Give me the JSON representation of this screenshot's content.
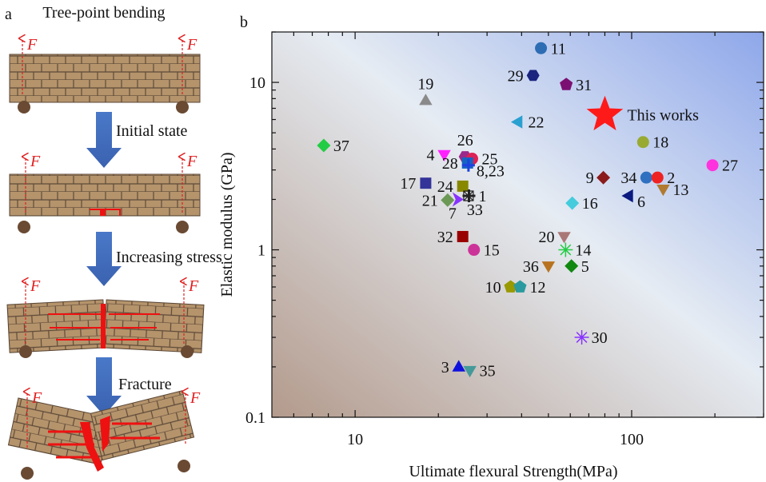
{
  "panel_a": {
    "panel_label": "a",
    "title": "Tree-point bending",
    "force_label": "F",
    "steps": [
      "Initial state",
      "Increasing stress",
      "Fracture"
    ]
  },
  "chart_data": {
    "type": "scatter",
    "panel_label": "b",
    "x_label": "Ultimate flexural Strength(MPa)",
    "y_label": "Elastic modulus (GPa)",
    "x_log": true,
    "y_log": true,
    "xlim": [
      5,
      300
    ],
    "ylim": [
      0.1,
      20
    ],
    "xticks": [
      10,
      100
    ],
    "yticks": [
      0.1,
      1,
      10
    ],
    "xminorticks": [
      6,
      7,
      8,
      9,
      20,
      30,
      40,
      50,
      60,
      70,
      80,
      90,
      200,
      300
    ],
    "yminorticks": [
      0.2,
      0.3,
      0.4,
      0.5,
      0.6,
      0.7,
      0.8,
      0.9,
      2,
      3,
      4,
      5,
      6,
      7,
      8,
      9,
      20
    ],
    "points": [
      {
        "label": "11",
        "x": 47,
        "y": 16,
        "color": "#2e6db4",
        "marker": "circle"
      },
      {
        "label": "29",
        "x": 44,
        "y": 11,
        "color": "#1a237e",
        "marker": "hexagon"
      },
      {
        "label": "31",
        "x": 58,
        "y": 9.7,
        "color": "#7b1072",
        "marker": "pentagon"
      },
      {
        "label": "19",
        "x": 18,
        "y": 7.8,
        "color": "#8a8a8a",
        "marker": "triangle-up"
      },
      {
        "label": "This works",
        "x": 80,
        "y": 6.4,
        "color": "#ff1a1a",
        "marker": "star"
      },
      {
        "label": "22",
        "x": 39,
        "y": 5.8,
        "color": "#2aa0d0",
        "marker": "triangle-left"
      },
      {
        "label": "37",
        "x": 7.7,
        "y": 4.2,
        "color": "#22cc44",
        "marker": "diamond"
      },
      {
        "label": "18",
        "x": 110,
        "y": 4.4,
        "color": "#99aa33",
        "marker": "circle"
      },
      {
        "label": "4",
        "x": 21,
        "y": 3.7,
        "color": "#ff22ff",
        "marker": "triangle-down"
      },
      {
        "label": "26",
        "x": 25,
        "y": 3.6,
        "color": "#9a2a8a",
        "marker": "hexagon"
      },
      {
        "label": "25",
        "x": 26.5,
        "y": 3.5,
        "color": "#dd2255",
        "marker": "circle"
      },
      {
        "label": "28",
        "x": 25.5,
        "y": 3.3,
        "color": "#1565c0",
        "marker": "square"
      },
      {
        "label": "8,23",
        "x": 25.7,
        "y": 3.2,
        "color": "#2040e0",
        "marker": "plus"
      },
      {
        "label": "27",
        "x": 196,
        "y": 3.2,
        "color": "#ff33dd",
        "marker": "circle"
      },
      {
        "label": "9",
        "x": 79,
        "y": 2.7,
        "color": "#8b1a1a",
        "marker": "diamond"
      },
      {
        "label": "34",
        "x": 113,
        "y": 2.7,
        "color": "#3070c0",
        "marker": "circle"
      },
      {
        "label": "2",
        "x": 124,
        "y": 2.7,
        "color": "#ee2222",
        "marker": "circle"
      },
      {
        "label": "13",
        "x": 130,
        "y": 2.3,
        "color": "#b07a30",
        "marker": "triangle-down"
      },
      {
        "label": "17",
        "x": 18,
        "y": 2.5,
        "color": "#333399",
        "marker": "square"
      },
      {
        "label": "24",
        "x": 24.5,
        "y": 2.4,
        "color": "#888800",
        "marker": "square"
      },
      {
        "label": "6",
        "x": 98,
        "y": 2.1,
        "color": "#0a1a80",
        "marker": "triangle-left"
      },
      {
        "label": "1",
        "x": 25.8,
        "y": 2.1,
        "color": "#222222",
        "marker": "plus"
      },
      {
        "label": "21",
        "x": 21.6,
        "y": 1.98,
        "color": "#6b9955",
        "marker": "diamond"
      },
      {
        "label": "7",
        "x": 23.4,
        "y": 2.0,
        "color": "#8833ff",
        "marker": "chevron"
      },
      {
        "label": "33",
        "x": 25.7,
        "y": 2.1,
        "color": "#222222",
        "marker": "box-x"
      },
      {
        "label": "16",
        "x": 61,
        "y": 1.9,
        "color": "#44ccdd",
        "marker": "diamond"
      },
      {
        "label": "20",
        "x": 57,
        "y": 1.2,
        "color": "#aa7777",
        "marker": "triangle-down"
      },
      {
        "label": "32",
        "x": 24.5,
        "y": 1.2,
        "color": "#990000",
        "marker": "square"
      },
      {
        "label": "14",
        "x": 57.7,
        "y": 1.0,
        "color": "#22cc44",
        "marker": "asterisk"
      },
      {
        "label": "15",
        "x": 26.9,
        "y": 1.0,
        "color": "#cc3399",
        "marker": "circle"
      },
      {
        "label": "36",
        "x": 50,
        "y": 0.8,
        "color": "#b87320",
        "marker": "triangle-down"
      },
      {
        "label": "5",
        "x": 60.6,
        "y": 0.8,
        "color": "#118811",
        "marker": "diamond"
      },
      {
        "label": "10",
        "x": 36.5,
        "y": 0.6,
        "color": "#999900",
        "marker": "pentagon"
      },
      {
        "label": "12",
        "x": 39.5,
        "y": 0.6,
        "color": "#2a9aa0",
        "marker": "pentagon"
      },
      {
        "label": "30",
        "x": 66,
        "y": 0.3,
        "color": "#8833ff",
        "marker": "asterisk"
      },
      {
        "label": "3",
        "x": 23.7,
        "y": 0.2,
        "color": "#1010dd",
        "marker": "triangle-up"
      },
      {
        "label": "35",
        "x": 26,
        "y": 0.19,
        "color": "#449999",
        "marker": "triangle-down"
      }
    ]
  }
}
